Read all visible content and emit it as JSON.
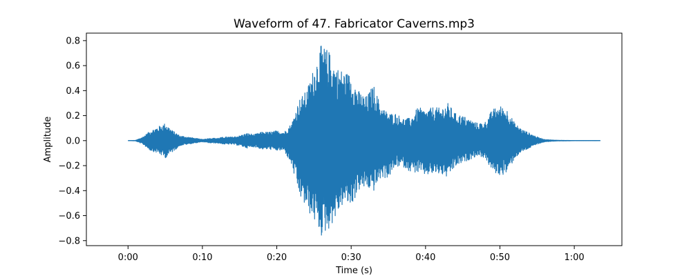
{
  "chart_data": {
    "type": "line",
    "title": "Waveform of 47. Fabricator Caverns.mp3",
    "xlabel": "Time (s)",
    "ylabel": "Amplitude",
    "xlim": [
      -5.6,
      66.4
    ],
    "ylim": [
      -0.84,
      0.86
    ],
    "x_ticks": [
      0,
      10,
      20,
      30,
      40,
      50,
      60
    ],
    "x_tick_labels": [
      "0:00",
      "0:10",
      "0:20",
      "0:30",
      "0:40",
      "0:50",
      "1:00"
    ],
    "y_ticks": [
      -0.8,
      -0.6,
      -0.4,
      -0.2,
      0.0,
      0.2,
      0.4,
      0.6,
      0.8
    ],
    "y_tick_labels": [
      "−0.8",
      "−0.6",
      "−0.4",
      "−0.2",
      "0.0",
      "0.2",
      "0.4",
      "0.6",
      "0.8"
    ],
    "grid": false,
    "color": "#1f77b4",
    "series": [
      {
        "x": [
          0,
          1,
          2,
          3,
          4,
          5,
          6,
          7,
          8,
          9,
          10,
          11,
          12,
          13,
          14,
          15,
          16,
          17,
          18,
          19,
          20,
          21,
          22,
          23,
          24,
          25,
          26,
          27,
          28,
          29,
          30,
          31,
          32,
          33,
          34,
          35,
          36,
          37,
          38,
          39,
          40,
          41,
          42,
          43,
          44,
          45,
          46,
          47,
          48,
          49,
          50,
          51,
          52,
          53,
          54,
          55,
          56,
          57,
          58,
          59,
          60,
          61,
          62,
          63,
          63.5
        ],
        "upper": [
          0.0,
          0.002,
          0.03,
          0.08,
          0.11,
          0.14,
          0.08,
          0.04,
          0.03,
          0.02,
          0.01,
          0.02,
          0.02,
          0.03,
          0.03,
          0.04,
          0.06,
          0.05,
          0.07,
          0.07,
          0.08,
          0.07,
          0.14,
          0.33,
          0.4,
          0.59,
          0.77,
          0.72,
          0.59,
          0.56,
          0.53,
          0.4,
          0.35,
          0.45,
          0.28,
          0.22,
          0.22,
          0.18,
          0.18,
          0.27,
          0.24,
          0.27,
          0.26,
          0.3,
          0.22,
          0.2,
          0.17,
          0.14,
          0.15,
          0.25,
          0.28,
          0.25,
          0.14,
          0.09,
          0.06,
          0.03,
          0.01,
          0.005,
          0.003,
          0.002,
          0.001,
          0.001,
          0.001,
          0.001,
          0.0
        ],
        "lower": [
          0.0,
          -0.002,
          -0.03,
          -0.08,
          -0.1,
          -0.14,
          -0.09,
          -0.04,
          -0.03,
          -0.02,
          -0.01,
          -0.02,
          -0.02,
          -0.03,
          -0.03,
          -0.04,
          -0.06,
          -0.05,
          -0.07,
          -0.07,
          -0.08,
          -0.08,
          -0.2,
          -0.44,
          -0.55,
          -0.64,
          -0.77,
          -0.71,
          -0.61,
          -0.5,
          -0.53,
          -0.4,
          -0.38,
          -0.41,
          -0.3,
          -0.3,
          -0.21,
          -0.21,
          -0.25,
          -0.26,
          -0.28,
          -0.27,
          -0.27,
          -0.3,
          -0.21,
          -0.18,
          -0.15,
          -0.12,
          -0.14,
          -0.25,
          -0.28,
          -0.26,
          -0.14,
          -0.09,
          -0.06,
          -0.03,
          -0.01,
          -0.005,
          -0.003,
          -0.002,
          -0.001,
          -0.001,
          -0.001,
          -0.001,
          0.0
        ]
      }
    ]
  }
}
